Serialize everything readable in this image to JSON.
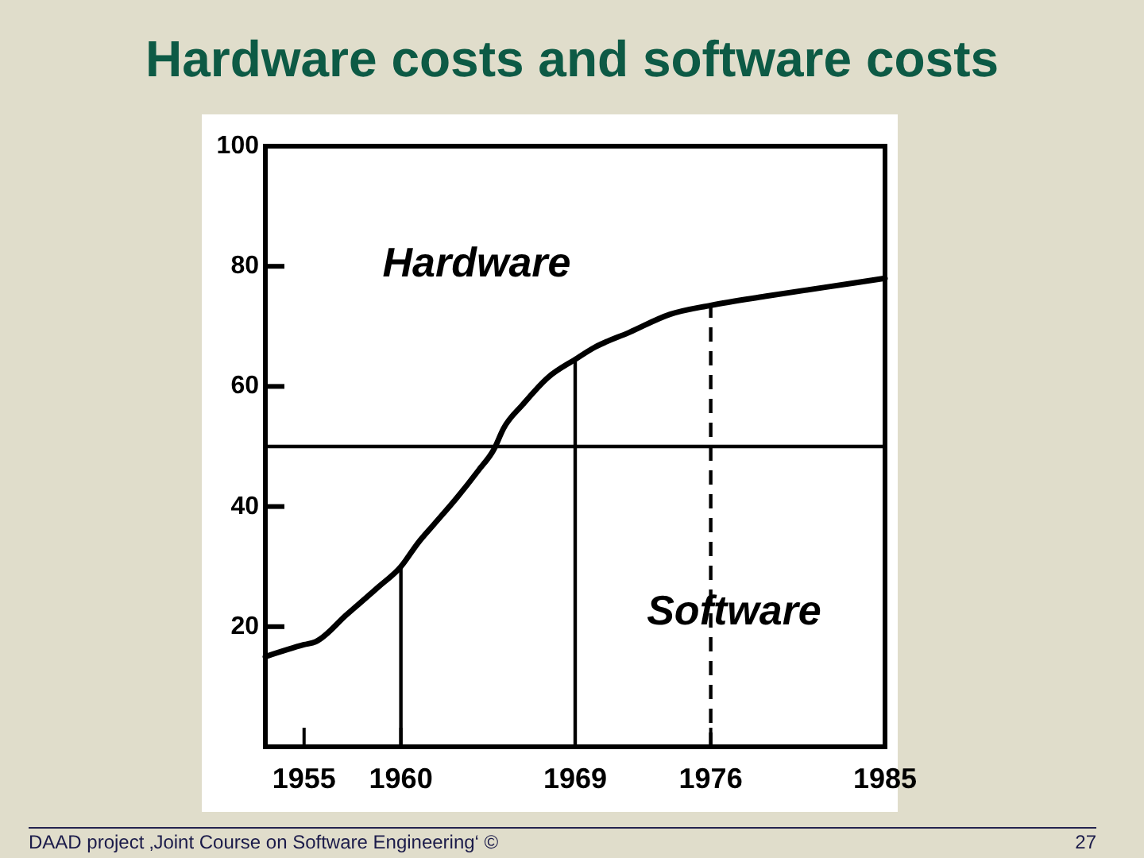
{
  "chart_data": {
    "type": "line",
    "title": "Hardware costs and software costs",
    "x": [
      1953,
      1955,
      1955.6,
      1957.2,
      1958.8,
      1960,
      1960.9,
      1961.7,
      1962.9,
      1964,
      1964.8,
      1965.3,
      1966.3,
      1967.6,
      1969,
      1970,
      1971.8,
      1973.9,
      1976,
      1978.8,
      1981.9,
      1985
    ],
    "series": [
      {
        "color": "#000000",
        "values": [
          15,
          17,
          17.5,
          22,
          26.5,
          30,
          34,
          37,
          41.5,
          46,
          49.5,
          53,
          57,
          61.5,
          64.5,
          66.5,
          69,
          72,
          73.5,
          75,
          76.5,
          78
        ]
      }
    ],
    "xlim": [
      1953,
      1985
    ],
    "xticks": [
      1955,
      1960,
      1969,
      1976,
      1985
    ],
    "ylim": [
      0,
      100
    ],
    "yticks": [
      20,
      40,
      60,
      80,
      100
    ],
    "ref_lines": [
      {
        "axis": "y",
        "value": 50,
        "line_style": "solid"
      },
      {
        "axis": "x",
        "value": 1960,
        "line_style": "solid"
      },
      {
        "axis": "x",
        "value": 1969,
        "line_style": "solid"
      },
      {
        "axis": "x",
        "value": 1976,
        "line_style": "dashed"
      }
    ],
    "annotations": [
      "Hardware",
      "Software",
      "DAAD project ‚Joint Course on Software Engineering‘ ©",
      "27"
    ]
  }
}
